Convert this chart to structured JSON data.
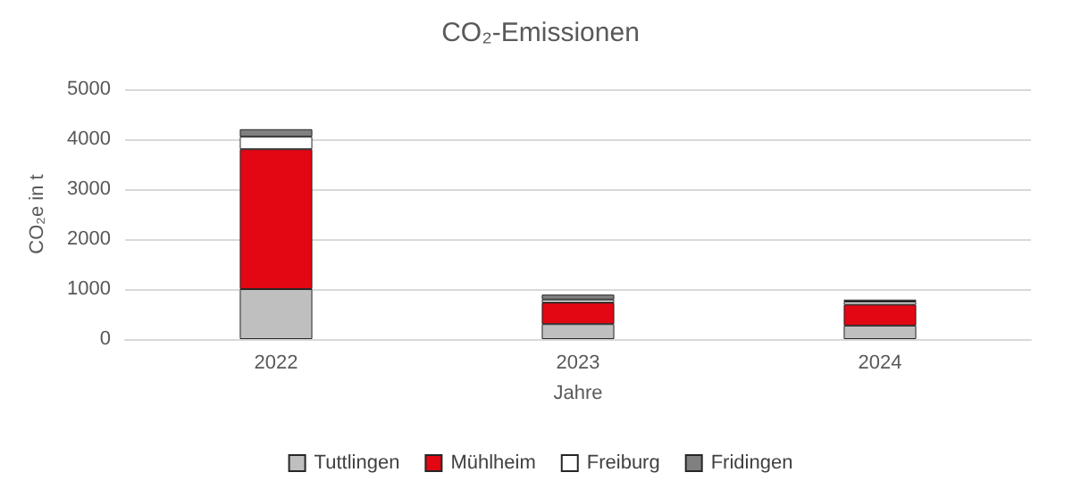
{
  "chart_data": {
    "type": "bar",
    "title": "CO₂-Emissionen",
    "xlabel": "Jahre",
    "ylabel": "CO₂e in t",
    "categories": [
      "2022",
      "2023",
      "2024"
    ],
    "stacked": true,
    "series": [
      {
        "name": "Tuttlingen",
        "color": "#bfbfbf",
        "values": [
          1000,
          300,
          270
        ]
      },
      {
        "name": "Mühlheim",
        "color": "#e30613",
        "values": [
          2800,
          430,
          420
        ]
      },
      {
        "name": "Freiburg",
        "color": "#ffffff",
        "values": [
          250,
          60,
          60
        ]
      },
      {
        "name": "Fridingen",
        "color": "#808080",
        "values": [
          150,
          100,
          40
        ]
      }
    ],
    "ylim": [
      0,
      5000
    ],
    "yticks": [
      0,
      1000,
      2000,
      3000,
      4000,
      5000
    ],
    "grid": "y",
    "legend": "bottom"
  }
}
